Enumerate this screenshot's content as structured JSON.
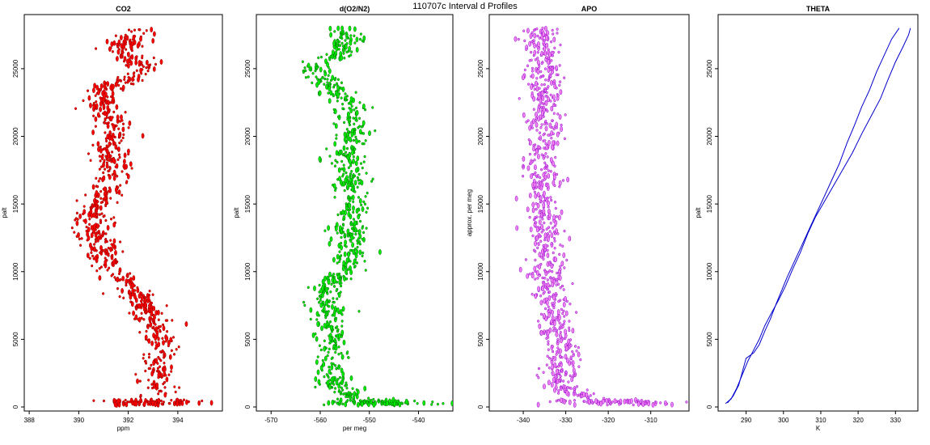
{
  "figure_title": "110707c   Interval d Profiles",
  "chart_data": [
    {
      "type": "scatter",
      "title": "CO2",
      "xlabel": "ppm",
      "ylabel": "palt",
      "xlim": [
        387.8,
        395.8
      ],
      "ylim": [
        -300,
        29000
      ],
      "xticks": [
        388,
        390,
        392,
        394
      ],
      "yticks": [
        0,
        5000,
        10000,
        15000,
        20000,
        25000
      ],
      "colors": {
        "fill": "#ff0000",
        "edge": "#8b0000"
      },
      "series": [
        {
          "profile": [
            [
              392.4,
              28000
            ],
            [
              391.7,
              26500
            ],
            [
              392.7,
              25000
            ],
            [
              391.0,
              23500
            ],
            [
              390.9,
              22000
            ],
            [
              391.5,
              20500
            ],
            [
              391.2,
              19000
            ],
            [
              391.5,
              17500
            ],
            [
              391.2,
              16000
            ],
            [
              390.4,
              14500
            ],
            [
              390.6,
              13000
            ],
            [
              391.0,
              11500
            ],
            [
              391.3,
              10000
            ],
            [
              392.3,
              8500
            ],
            [
              392.8,
              7000
            ],
            [
              393.1,
              5500
            ],
            [
              393.3,
              4000
            ],
            [
              393.2,
              2500
            ],
            [
              393.4,
              1200
            ],
            [
              392.8,
              300
            ]
          ]
        }
      ]
    },
    {
      "type": "scatter",
      "title": "d(O2/N2)",
      "xlabel": "per meg",
      "ylabel": "palt",
      "xlim": [
        -573,
        -533
      ],
      "ylim": [
        -300,
        29000
      ],
      "xticks": [
        -570,
        -560,
        -550,
        -540
      ],
      "yticks": [
        0,
        5000,
        10000,
        15000,
        20000,
        25000
      ],
      "colors": {
        "fill": "#00ee00",
        "edge": "#006400"
      },
      "series": [
        {
          "profile": [
            [
              -555,
              28000
            ],
            [
              -554,
              26500
            ],
            [
              -562,
              25000
            ],
            [
              -557,
              23500
            ],
            [
              -553,
              22000
            ],
            [
              -553,
              20500
            ],
            [
              -554,
              19000
            ],
            [
              -554,
              17500
            ],
            [
              -554,
              16000
            ],
            [
              -553,
              14500
            ],
            [
              -554,
              13000
            ],
            [
              -553,
              11500
            ],
            [
              -555,
              10000
            ],
            [
              -559,
              8500
            ],
            [
              -558,
              7000
            ],
            [
              -558,
              5500
            ],
            [
              -557,
              4000
            ],
            [
              -558,
              2500
            ],
            [
              -556,
              1200
            ],
            [
              -548,
              300
            ]
          ]
        }
      ]
    },
    {
      "type": "scatter",
      "title": "APO",
      "xlabel": "",
      "ylabel": "approx. per meg",
      "xlim": [
        -348,
        -301
      ],
      "ylim": [
        -300,
        29000
      ],
      "xticks": [
        -340,
        -330,
        -320,
        -310
      ],
      "yticks": [
        0,
        5000,
        10000,
        15000,
        20000,
        25000
      ],
      "colors": {
        "fill": "#ee82ee",
        "edge": "#9400d3"
      },
      "series": [
        {
          "profile": [
            [
              -336,
              28000
            ],
            [
              -336,
              26500
            ],
            [
              -335,
              25000
            ],
            [
              -335,
              23500
            ],
            [
              -335,
              22000
            ],
            [
              -335,
              20500
            ],
            [
              -335,
              19000
            ],
            [
              -335,
              17500
            ],
            [
              -335,
              16000
            ],
            [
              -335,
              14500
            ],
            [
              -335,
              13000
            ],
            [
              -335,
              11500
            ],
            [
              -334,
              10000
            ],
            [
              -333,
              8500
            ],
            [
              -333,
              7000
            ],
            [
              -332,
              5500
            ],
            [
              -331,
              4000
            ],
            [
              -331,
              2500
            ],
            [
              -330,
              1200
            ],
            [
              -318,
              300
            ]
          ]
        }
      ]
    },
    {
      "type": "line",
      "title": "THETA",
      "xlabel": "K",
      "ylabel": "palt",
      "xlim": [
        282.5,
        336
      ],
      "ylim": [
        -300,
        29000
      ],
      "xticks": [
        290,
        300,
        310,
        320,
        330
      ],
      "yticks": [
        0,
        5000,
        10000,
        15000,
        20000,
        25000
      ],
      "colors": {
        "line": "#0000cd"
      },
      "series": [
        {
          "values": [
            [
              285,
              300
            ],
            [
              286.5,
              800
            ],
            [
              288,
              1600
            ],
            [
              289,
              2600
            ],
            [
              290,
              3600
            ],
            [
              292,
              4000
            ],
            [
              293.5,
              4600
            ],
            [
              295,
              5600
            ],
            [
              296.5,
              6500
            ],
            [
              298,
              7600
            ],
            [
              299.5,
              8600
            ],
            [
              301,
              9600
            ],
            [
              303,
              10800
            ],
            [
              305,
              12000
            ],
            [
              307,
              13200
            ],
            [
              309,
              14400
            ],
            [
              311,
              15600
            ],
            [
              313,
              16800
            ],
            [
              315,
              18000
            ],
            [
              317,
              19500
            ],
            [
              319,
              20800
            ],
            [
              321,
              22200
            ],
            [
              323,
              23400
            ],
            [
              325,
              24800
            ],
            [
              327,
              26000
            ],
            [
              329,
              27200
            ],
            [
              331,
              28000
            ]
          ]
        },
        {
          "values": [
            [
              284.5,
              250
            ],
            [
              286,
              600
            ],
            [
              287.5,
              1400
            ],
            [
              289,
              2400
            ],
            [
              290.5,
              3400
            ],
            [
              292,
              4200
            ],
            [
              293.5,
              5000
            ],
            [
              295,
              6000
            ],
            [
              296.5,
              6800
            ],
            [
              298.5,
              7800
            ],
            [
              300.5,
              8900
            ],
            [
              302.5,
              10200
            ],
            [
              304.5,
              11400
            ],
            [
              306.5,
              12800
            ],
            [
              308.5,
              14000
            ],
            [
              311,
              15200
            ],
            [
              313.5,
              16400
            ],
            [
              316,
              17600
            ],
            [
              318.5,
              18800
            ],
            [
              321,
              20200
            ],
            [
              323.5,
              21500
            ],
            [
              326,
              22800
            ],
            [
              328,
              24200
            ],
            [
              330,
              25500
            ],
            [
              332,
              26600
            ],
            [
              333.5,
              27500
            ],
            [
              334,
              28000
            ]
          ]
        }
      ]
    }
  ]
}
